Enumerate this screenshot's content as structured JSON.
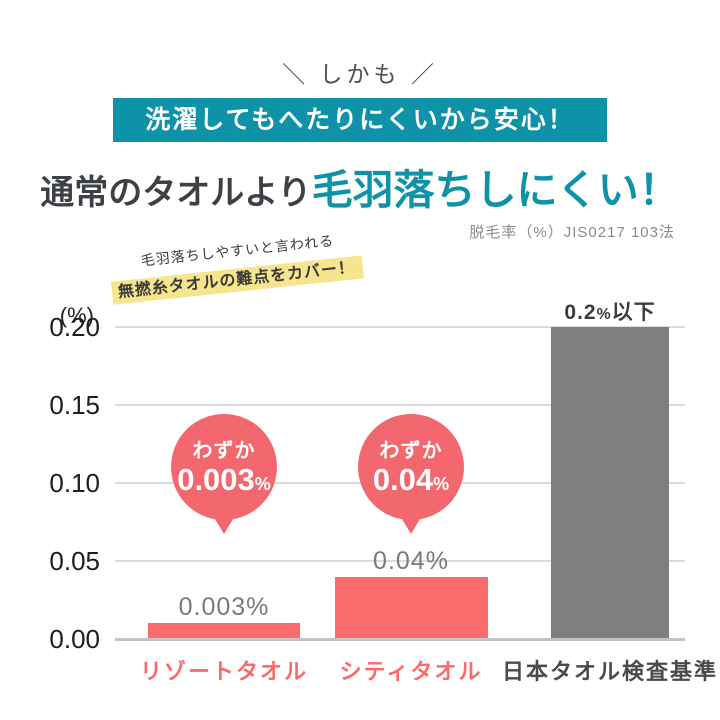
{
  "header": {
    "kicker": "＼ しかも ／",
    "banner": "洗濯してもへたりにくいから安心！",
    "title_plain": "通常のタオルより",
    "title_accent": "毛羽落ちしにくい！",
    "method_note": "脱毛率（%）JIS0217 103法"
  },
  "annotation": {
    "line1": "毛羽落ちしやすいと言われる",
    "line2": "無撚糸タオルの難点をカバー！"
  },
  "colors": {
    "teal": "#0d92a8",
    "coral": "#fd6c6c",
    "bubble": "#f3686e",
    "gray_bar": "#7f7f7f",
    "highlight": "#f7e58e",
    "heading_dark": "#3d4145",
    "text_muted": "#7a7a7a",
    "text_dark": "#3c3c3c",
    "axis_line": "#c3c3c3",
    "grid_line": "#dbdbdb",
    "tick_text": "#1d1d1d"
  },
  "chart_data": {
    "type": "bar",
    "title": "通常のタオルより毛羽落ちしにくい！",
    "unit_label": "(%)",
    "ylabel": "脱毛率（%）",
    "categories": [
      "リゾートタオル",
      "シティタオル",
      "日本タオル検査基準"
    ],
    "values": [
      0.003,
      0.04,
      0.2
    ],
    "bar_colors": [
      "coral",
      "coral",
      "gray"
    ],
    "category_colors": [
      "#fb6a6a",
      "#fb6a6a",
      "#4a4a4a"
    ],
    "bar_labels": [
      {
        "style": "muted",
        "segments": [
          {
            "text": "0.003%",
            "small": false
          }
        ]
      },
      {
        "style": "muted",
        "segments": [
          {
            "text": "0.04%",
            "small": false
          }
        ]
      },
      {
        "style": "dark",
        "segments": [
          {
            "text": "0.2",
            "small": false
          },
          {
            "text": "%",
            "small": true
          },
          {
            "text": "以下",
            "small": false
          }
        ]
      }
    ],
    "yticks": [
      0,
      0.05,
      0.1,
      0.15,
      0.2
    ],
    "ytick_labels": [
      "0.00",
      "0.05",
      "0.10",
      "0.15",
      "0.20"
    ],
    "ylim": [
      0,
      0.2
    ],
    "grid": true,
    "legend": false,
    "callouts": [
      {
        "bar_index": 0,
        "label": "わずか",
        "value": "0.003",
        "suffix": "%"
      },
      {
        "bar_index": 1,
        "label": "わずか",
        "value": "0.04",
        "suffix": "%"
      }
    ]
  }
}
